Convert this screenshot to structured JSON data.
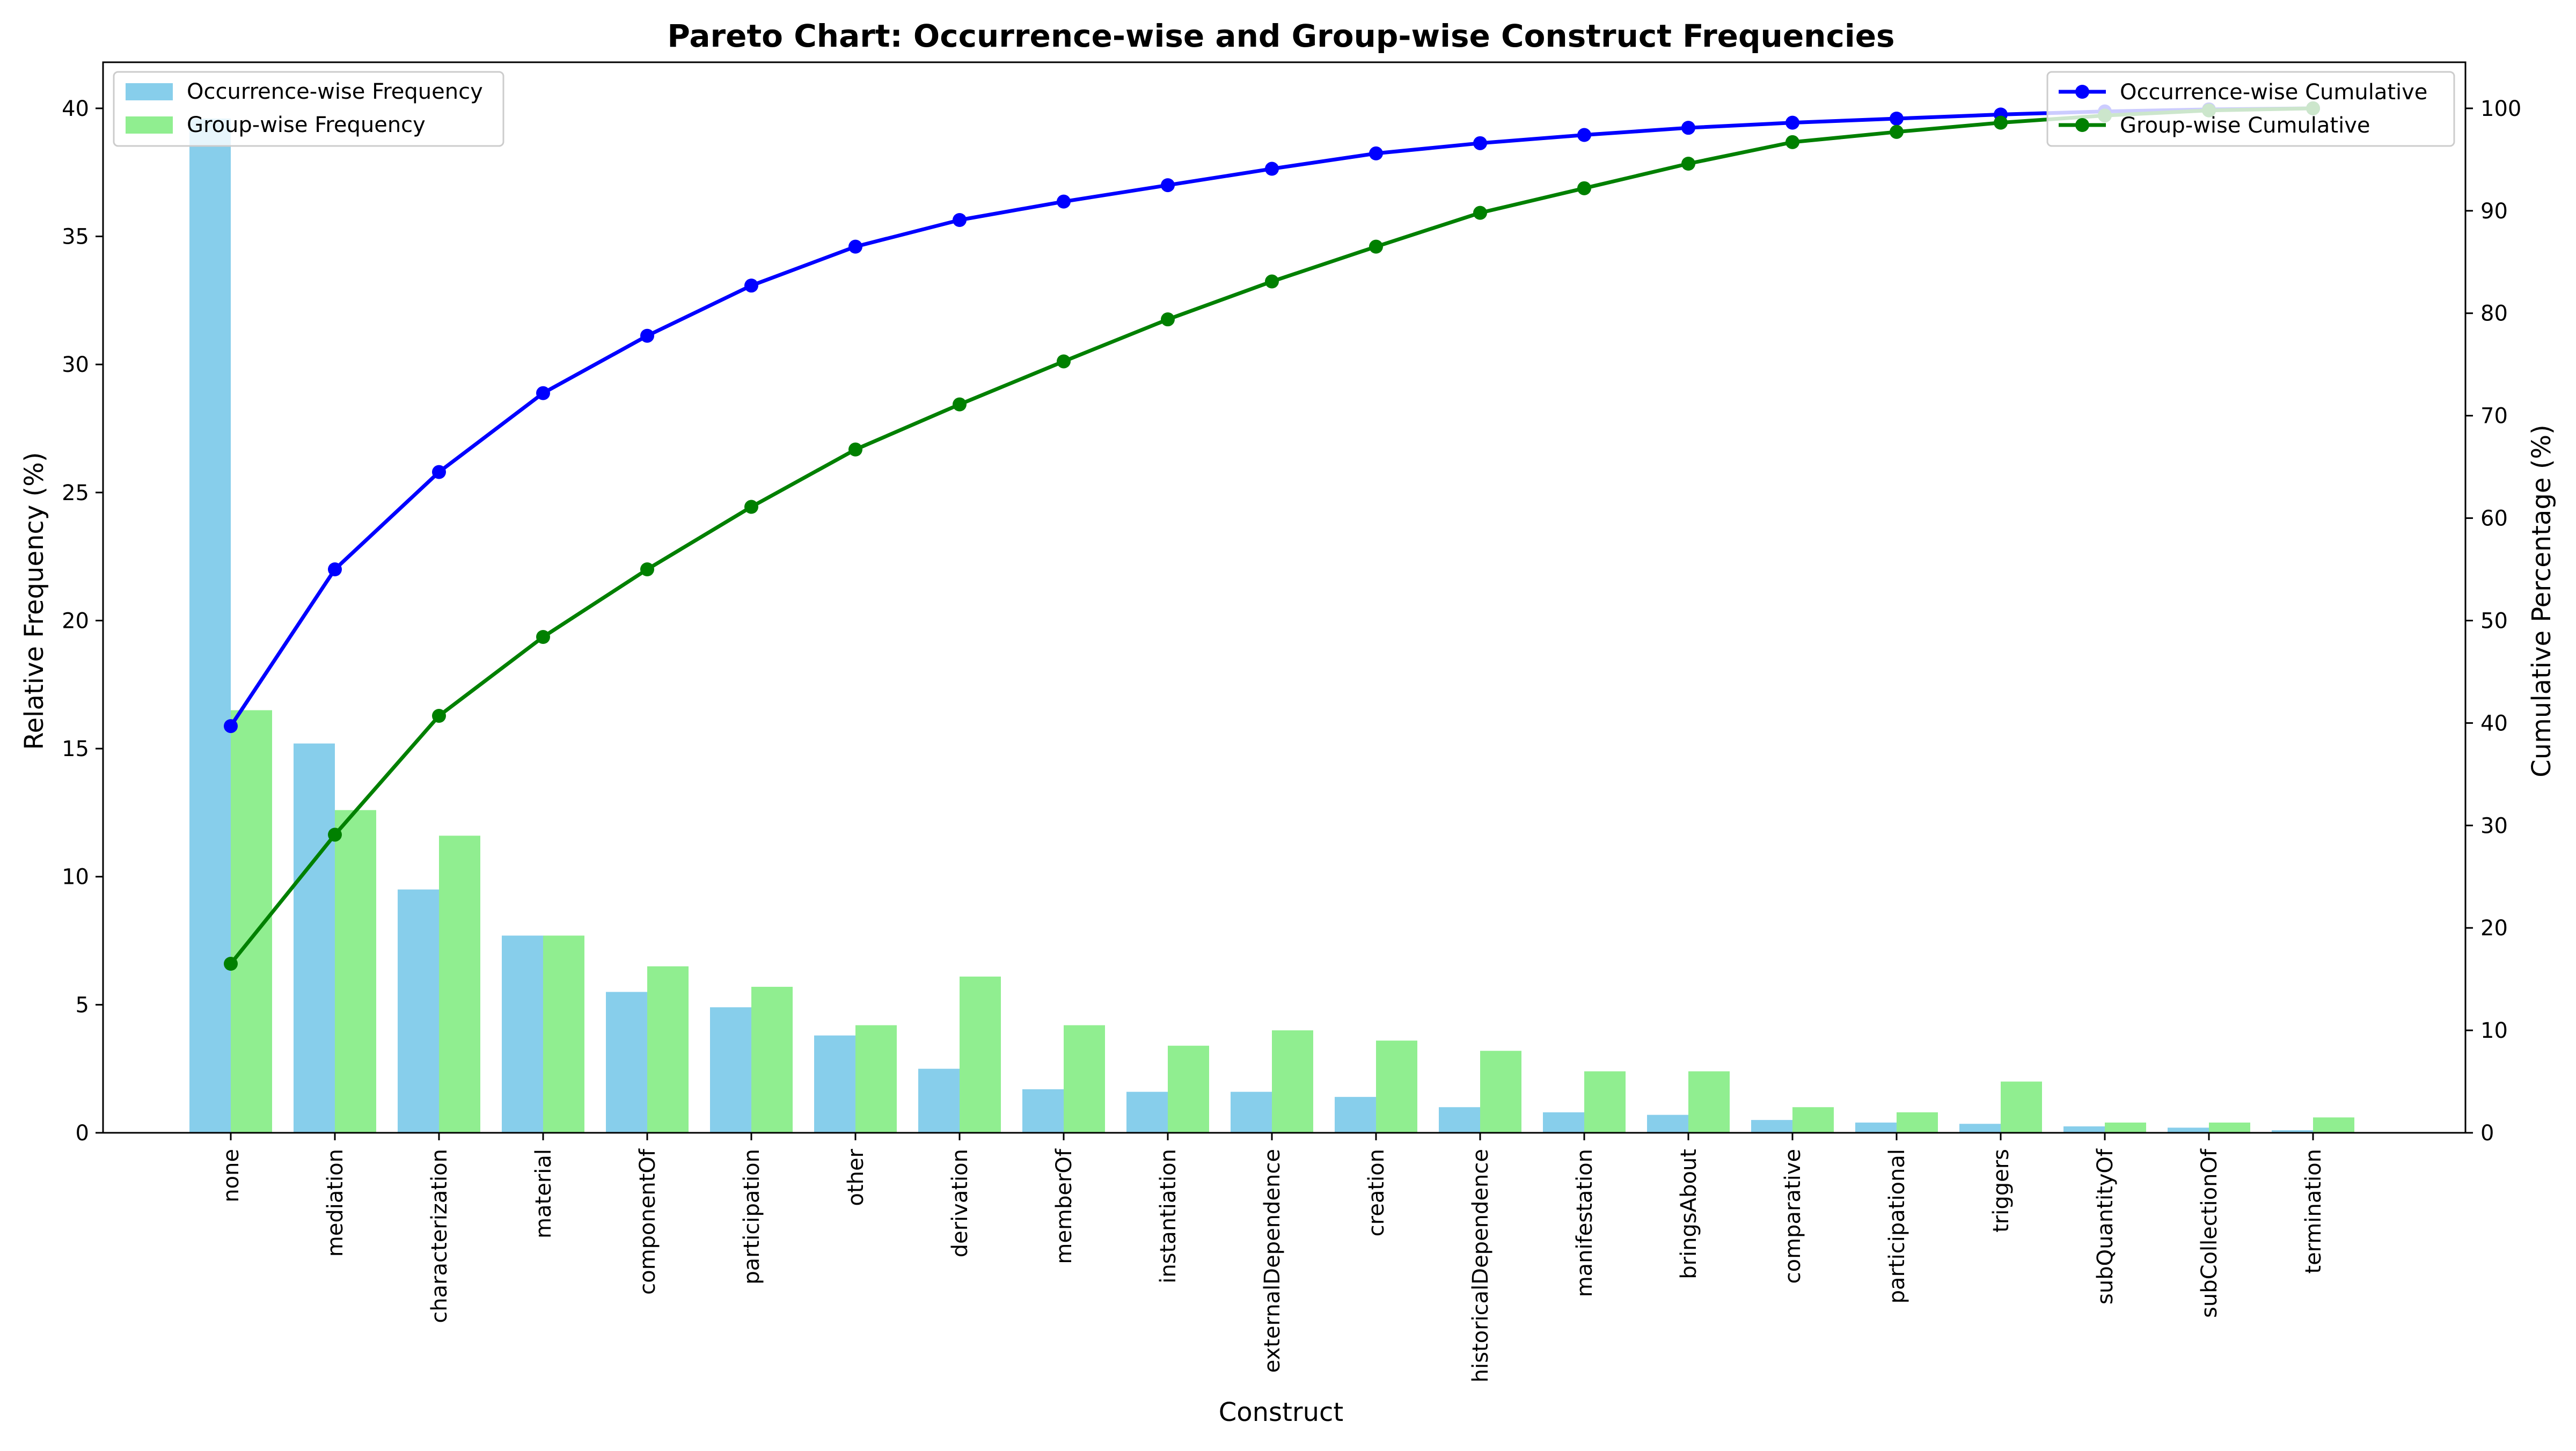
{
  "chart_data": {
    "type": "bar",
    "title": "Pareto Chart: Occurrence-wise and Group-wise Construct Frequencies",
    "xlabel": "Construct",
    "ylabel": "Relative Frequency (%)",
    "y2label": "Cumulative Percentage (%)",
    "ylim": [
      0,
      41.8
    ],
    "y2lim": [
      0,
      104.5
    ],
    "yticks": [
      0,
      5,
      10,
      15,
      20,
      25,
      30,
      35,
      40
    ],
    "y2ticks": [
      0,
      10,
      20,
      30,
      40,
      50,
      60,
      70,
      80,
      90,
      100
    ],
    "grid": false,
    "categories": [
      "none",
      "mediation",
      "characterization",
      "material",
      "componentOf",
      "participation",
      "other",
      "derivation",
      "memberOf",
      "instantiation",
      "externalDependence",
      "creation",
      "historicalDependence",
      "manifestation",
      "bringsAbout",
      "comparative",
      "participational",
      "triggers",
      "subQuantityOf",
      "subCollectionOf",
      "termination"
    ],
    "bar_series": [
      {
        "name": "Occurrence-wise Frequency",
        "color": "#87CEEB",
        "values": [
          39.6,
          15.2,
          9.5,
          7.7,
          5.5,
          4.9,
          3.8,
          2.5,
          1.7,
          1.6,
          1.6,
          1.4,
          1.0,
          0.8,
          0.7,
          0.5,
          0.4,
          0.35,
          0.25,
          0.2,
          0.1
        ]
      },
      {
        "name": "Group-wise Frequency",
        "color": "#90EE90",
        "values": [
          16.5,
          12.6,
          11.6,
          7.7,
          6.5,
          5.7,
          4.2,
          6.1,
          4.2,
          3.4,
          4.0,
          3.6,
          3.2,
          2.4,
          2.4,
          1.0,
          0.8,
          2.0,
          0.4,
          0.4,
          0.6
        ]
      }
    ],
    "line_series": [
      {
        "name": "Occurrence-wise Cumulative",
        "color": "#0000FF",
        "axis": "right",
        "values": [
          39.7,
          55.0,
          64.5,
          72.2,
          77.8,
          82.7,
          86.5,
          89.1,
          90.9,
          92.5,
          94.1,
          95.6,
          96.6,
          97.4,
          98.1,
          98.6,
          99.0,
          99.4,
          99.7,
          99.9,
          100.0
        ]
      },
      {
        "name": "Group-wise Cumulative",
        "color": "#008000",
        "axis": "right",
        "values": [
          16.5,
          29.1,
          40.7,
          48.4,
          55.0,
          61.1,
          66.7,
          71.1,
          75.3,
          79.4,
          83.1,
          86.5,
          89.8,
          92.2,
          94.6,
          96.7,
          97.7,
          98.6,
          99.3,
          99.8,
          100.0
        ]
      }
    ],
    "legend_bars_position": "top-left",
    "legend_lines_position": "top-right"
  }
}
